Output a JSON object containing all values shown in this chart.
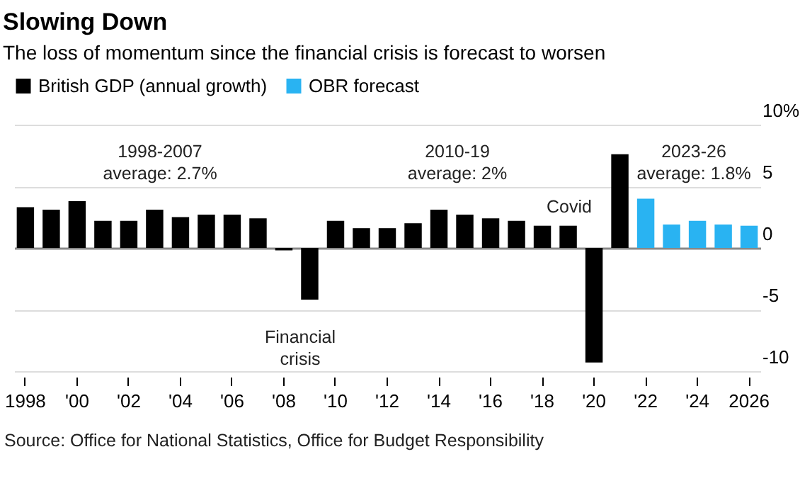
{
  "chart_data": {
    "type": "bar",
    "title": "Slowing Down",
    "subtitle": "The loss of momentum since the financial crisis is forecast to worsen",
    "categories": [
      "1998",
      null,
      "'00",
      null,
      "'02",
      null,
      "'04",
      null,
      "'06",
      null,
      "'08",
      null,
      "'10",
      null,
      "'12",
      null,
      "'14",
      null,
      "'16",
      null,
      "'18",
      null,
      "'20",
      null,
      "'22",
      null,
      "'24",
      null,
      "2026"
    ],
    "series": [
      {
        "name": "British GDP (annual growth)",
        "color": "#000000",
        "values": [
          3.3,
          3.1,
          3.8,
          2.2,
          2.2,
          3.1,
          2.5,
          2.7,
          2.7,
          2.4,
          -0.2,
          -4.2,
          2.2,
          1.6,
          1.6,
          2.0,
          3.1,
          2.7,
          2.4,
          2.2,
          1.8,
          1.8,
          -9.3,
          7.6,
          null,
          null,
          null,
          null,
          null
        ]
      },
      {
        "name": "OBR forecast",
        "color": "#29b3f2",
        "values": [
          null,
          null,
          null,
          null,
          null,
          null,
          null,
          null,
          null,
          null,
          null,
          null,
          null,
          null,
          null,
          null,
          null,
          null,
          null,
          null,
          null,
          null,
          null,
          null,
          4.0,
          1.9,
          2.2,
          1.9,
          1.8
        ]
      }
    ],
    "ylim": [
      -10,
      10
    ],
    "yticks": [
      -10,
      -5,
      0,
      5,
      {
        "value": 10,
        "label": "10%"
      }
    ],
    "grid": "y",
    "legend": "top left",
    "annotations": [
      "1998-2007\naverage: 2.7%",
      "2010-19\naverage: 2%",
      "2023-26\naverage: 1.8%",
      "Covid",
      "Financial\ncrisis",
      "Source: Office for National Statistics, Office for Budget Responsibility"
    ]
  }
}
